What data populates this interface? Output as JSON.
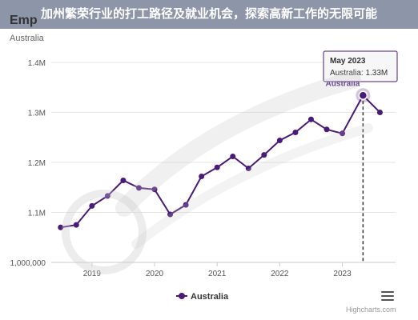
{
  "banner": {
    "title": "加州繁荣行业的打工路径及就业机会，探索高新工作的无限可能"
  },
  "chart_data": {
    "type": "line",
    "title": "Emp",
    "subtitle": "Australia",
    "xlabel": "",
    "ylabel": "",
    "x_tick_labels": [
      "2019",
      "2020",
      "2021",
      "2022",
      "2023"
    ],
    "y_tick_labels": [
      "1,000,000",
      "1.1M",
      "1.2M",
      "1.3M",
      "1.4M"
    ],
    "y_ticks": [
      1000000,
      1100000,
      1200000,
      1300000,
      1400000
    ],
    "ylim": [
      1000000,
      1400000
    ],
    "xlim": [
      2018.5,
      2023.8
    ],
    "grid": "horizontal",
    "legend": {
      "position": "bottom-center"
    },
    "series": [
      {
        "name": "Australia",
        "color": "#4a1a78",
        "x": [
          2018.5,
          2018.75,
          2019.0,
          2019.25,
          2019.5,
          2019.75,
          2020.0,
          2020.25,
          2020.5,
          2020.75,
          2021.0,
          2021.25,
          2021.5,
          2021.75,
          2022.0,
          2022.25,
          2022.5,
          2022.75,
          2023.0,
          2023.33,
          2023.6
        ],
        "values": [
          1070000,
          1075000,
          1113000,
          1133000,
          1164000,
          1149000,
          1146000,
          1096000,
          1115000,
          1172000,
          1190000,
          1212000,
          1188000,
          1215000,
          1244000,
          1260000,
          1286000,
          1266000,
          1258000,
          1334000,
          1300000
        ]
      }
    ],
    "highlight": {
      "index": 19,
      "series_label": "Australia",
      "tooltip_title": "May 2023",
      "tooltip_line": "Australia: 1.33M"
    }
  },
  "legend_label": "Australia",
  "credits": "Highcharts.com",
  "icons": {
    "menu": "hamburger-menu-icon",
    "watermark": "watermark-logo-icon"
  }
}
